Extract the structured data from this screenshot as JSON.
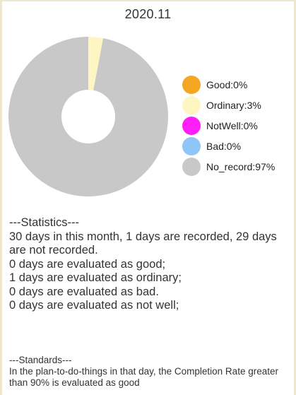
{
  "header": {
    "title": "2020.11"
  },
  "chart_data": {
    "type": "pie",
    "categories": [
      "Good",
      "Ordinary",
      "NotWell",
      "Bad",
      "No_record"
    ],
    "values": [
      0,
      3,
      0,
      0,
      97
    ],
    "colors": [
      "#f5a623",
      "#fdf6c3",
      "#ff1ef7",
      "#8fc6f7",
      "#c8c8c8"
    ],
    "legend_labels": [
      "Good:0%",
      "Ordinary:3%",
      "NotWell:0%",
      "Bad:0%",
      "No_record:97%"
    ],
    "donut": true,
    "legend_position": "right"
  },
  "statistics": {
    "heading": "---Statistics---",
    "lines": [
      "30 days in this month, 1 days are recorded, 29 days are not recorded.",
      "0 days are evaluated as good;",
      "1 days are evaluated as ordinary;",
      "0 days are evaluated as bad.",
      "0 days are evaluated as not well;"
    ]
  },
  "standards": {
    "heading": "---Standards---",
    "text": "In the plan-to-do-things in that day, the Completion Rate greater than 90% is evaluated as good"
  }
}
